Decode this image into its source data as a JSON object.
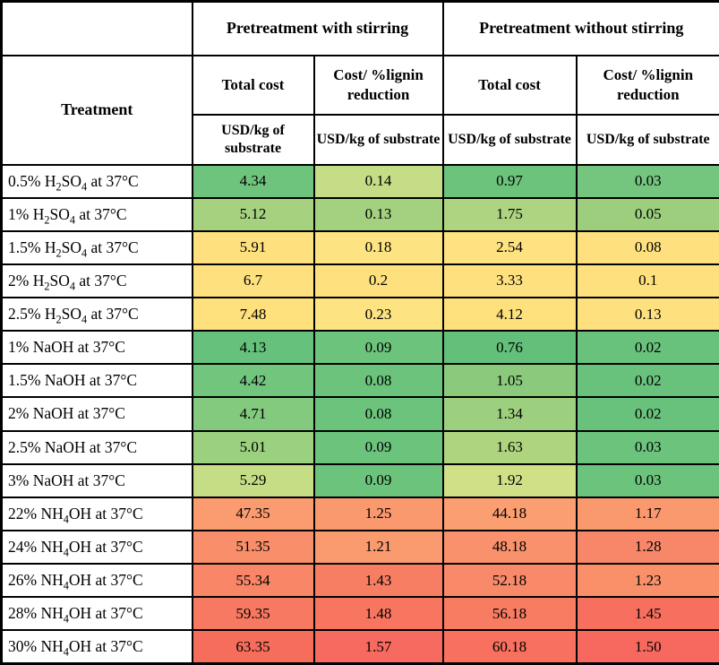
{
  "table": {
    "group_headers": [
      "Pretreatment with stirring",
      "Pretreatment without stirring"
    ],
    "treatment_header": "Treatment",
    "sub_headers": [
      "Total cost",
      "Cost/ %lignin reduction",
      "Total cost",
      "Cost/ %lignin reduction"
    ],
    "unit_label": "USD/kg of substrate",
    "rows": [
      {
        "treatment": "0.5% H₂SO₄ at 37°C",
        "cells": [
          {
            "value": "4.34",
            "color": "#6fc47d"
          },
          {
            "value": "0.14",
            "color": "#c5dd86"
          },
          {
            "value": "0.97",
            "color": "#6cc37c"
          },
          {
            "value": "0.03",
            "color": "#74c57e"
          }
        ]
      },
      {
        "treatment": "1% H₂SO₄ at 37°C",
        "cells": [
          {
            "value": "5.12",
            "color": "#a6d280"
          },
          {
            "value": "0.13",
            "color": "#a3d17f"
          },
          {
            "value": "1.75",
            "color": "#aed481"
          },
          {
            "value": "0.05",
            "color": "#9cce7e"
          }
        ]
      },
      {
        "treatment": "1.5% H₂SO₄ at 37°C",
        "cells": [
          {
            "value": "5.91",
            "color": "#fee17e"
          },
          {
            "value": "0.18",
            "color": "#fee382"
          },
          {
            "value": "2.54",
            "color": "#fee180"
          },
          {
            "value": "0.08",
            "color": "#fee17e"
          }
        ]
      },
      {
        "treatment": "2% H₂SO₄ at 37°C",
        "cells": [
          {
            "value": "6.7",
            "color": "#fee17e"
          },
          {
            "value": "0.2",
            "color": "#fee17e"
          },
          {
            "value": "3.33",
            "color": "#fee17e"
          },
          {
            "value": "0.1",
            "color": "#fee17e"
          }
        ]
      },
      {
        "treatment": "2.5% H₂SO₄ at 37°C",
        "cells": [
          {
            "value": "7.48",
            "color": "#fee07c"
          },
          {
            "value": "0.23",
            "color": "#fee383"
          },
          {
            "value": "4.12",
            "color": "#fee07c"
          },
          {
            "value": "0.13",
            "color": "#fee17e"
          }
        ]
      },
      {
        "treatment": "1% NaOH at 37°C",
        "cells": [
          {
            "value": "4.13",
            "color": "#65c17b"
          },
          {
            "value": "0.09",
            "color": "#6bc37c"
          },
          {
            "value": "0.76",
            "color": "#62c07a"
          },
          {
            "value": "0.02",
            "color": "#69c27c"
          }
        ]
      },
      {
        "treatment": "1.5% NaOH at 37°C",
        "cells": [
          {
            "value": "4.42",
            "color": "#71c57d"
          },
          {
            "value": "0.08",
            "color": "#6bc37c"
          },
          {
            "value": "1.05",
            "color": "#8bca7c"
          },
          {
            "value": "0.02",
            "color": "#69c27c"
          }
        ]
      },
      {
        "treatment": "2% NaOH at 37°C",
        "cells": [
          {
            "value": "4.71",
            "color": "#83c97e"
          },
          {
            "value": "0.08",
            "color": "#6bc37c"
          },
          {
            "value": "1.34",
            "color": "#9dd07e"
          },
          {
            "value": "0.02",
            "color": "#69c27c"
          }
        ]
      },
      {
        "treatment": "2.5% NaOH at 37°C",
        "cells": [
          {
            "value": "5.01",
            "color": "#9bd07e"
          },
          {
            "value": "0.09",
            "color": "#6bc37c"
          },
          {
            "value": "1.63",
            "color": "#aed480"
          },
          {
            "value": "0.03",
            "color": "#6bc37c"
          }
        ]
      },
      {
        "treatment": "3% NaOH at 37°C",
        "cells": [
          {
            "value": "5.29",
            "color": "#c5dd85"
          },
          {
            "value": "0.09",
            "color": "#6bc37c"
          },
          {
            "value": "1.92",
            "color": "#cfe087"
          },
          {
            "value": "0.03",
            "color": "#6bc37c"
          }
        ]
      },
      {
        "treatment": "22% NH₄OH at 37°C",
        "cells": [
          {
            "value": "47.35",
            "color": "#fa9b70"
          },
          {
            "value": "1.25",
            "color": "#fa986e"
          },
          {
            "value": "44.18",
            "color": "#fb9f72"
          },
          {
            "value": "1.17",
            "color": "#fa986e"
          }
        ]
      },
      {
        "treatment": "24% NH₄OH at 37°C",
        "cells": [
          {
            "value": "51.35",
            "color": "#f98f6a"
          },
          {
            "value": "1.21",
            "color": "#fa9a6f"
          },
          {
            "value": "48.18",
            "color": "#f9926c"
          },
          {
            "value": "1.28",
            "color": "#f88769"
          }
        ]
      },
      {
        "treatment": "26% NH₄OH at 37°C",
        "cells": [
          {
            "value": "55.34",
            "color": "#f98667"
          },
          {
            "value": "1.43",
            "color": "#f87e63"
          },
          {
            "value": "52.18",
            "color": "#f98a69"
          },
          {
            "value": "1.23",
            "color": "#f99069"
          }
        ]
      },
      {
        "treatment": "28% NH₄OH at 37°C",
        "cells": [
          {
            "value": "59.35",
            "color": "#f87961"
          },
          {
            "value": "1.48",
            "color": "#f87560"
          },
          {
            "value": "56.18",
            "color": "#f87c62"
          },
          {
            "value": "1.45",
            "color": "#f7705f"
          }
        ]
      },
      {
        "treatment": "30% NH₄OH at 37°C",
        "cells": [
          {
            "value": "63.35",
            "color": "#f76d5c"
          },
          {
            "value": "1.57",
            "color": "#f76a60"
          },
          {
            "value": "60.18",
            "color": "#f8715e"
          },
          {
            "value": "1.50",
            "color": "#f7695e"
          }
        ]
      }
    ]
  },
  "chart_data": {
    "type": "heatmap",
    "row_header": "Treatment",
    "column_groups": [
      "Pretreatment with stirring",
      "Pretreatment without stirring"
    ],
    "columns": [
      "Pretreatment with stirring - Total cost (USD/kg of substrate)",
      "Pretreatment with stirring - Cost/ %lignin reduction (USD/kg of substrate)",
      "Pretreatment without stirring - Total cost (USD/kg of substrate)",
      "Pretreatment without stirring - Cost/ %lignin reduction (USD/kg of substrate)"
    ],
    "rows": [
      "0.5% H₂SO₄ at 37°C",
      "1% H₂SO₄ at 37°C",
      "1.5% H₂SO₄ at 37°C",
      "2% H₂SO₄ at 37°C",
      "2.5% H₂SO₄ at 37°C",
      "1% NaOH at 37°C",
      "1.5% NaOH at 37°C",
      "2% NaOH at 37°C",
      "2.5% NaOH at 37°C",
      "3% NaOH at 37°C",
      "22% NH₄OH at 37°C",
      "24% NH₄OH at 37°C",
      "26% NH₄OH at 37°C",
      "28% NH₄OH at 37°C",
      "30% NH₄OH at 37°C"
    ],
    "values": [
      [
        4.34,
        0.14,
        0.97,
        0.03
      ],
      [
        5.12,
        0.13,
        1.75,
        0.05
      ],
      [
        5.91,
        0.18,
        2.54,
        0.08
      ],
      [
        6.7,
        0.2,
        3.33,
        0.1
      ],
      [
        7.48,
        0.23,
        4.12,
        0.13
      ],
      [
        4.13,
        0.09,
        0.76,
        0.02
      ],
      [
        4.42,
        0.08,
        1.05,
        0.02
      ],
      [
        4.71,
        0.08,
        1.34,
        0.02
      ],
      [
        5.01,
        0.09,
        1.63,
        0.03
      ],
      [
        5.29,
        0.09,
        1.92,
        0.03
      ],
      [
        47.35,
        1.25,
        44.18,
        1.17
      ],
      [
        51.35,
        1.21,
        48.18,
        1.28
      ],
      [
        55.34,
        1.43,
        52.18,
        1.23
      ],
      [
        59.35,
        1.48,
        56.18,
        1.45
      ],
      [
        63.35,
        1.57,
        60.18,
        1.5
      ]
    ],
    "color_scale": {
      "low": "#63c07a",
      "mid": "#fee17e",
      "high": "#f7695e",
      "meaning": "green = low cost, yellow = mid, red = high cost"
    },
    "legend_position": "none",
    "grid": true
  }
}
